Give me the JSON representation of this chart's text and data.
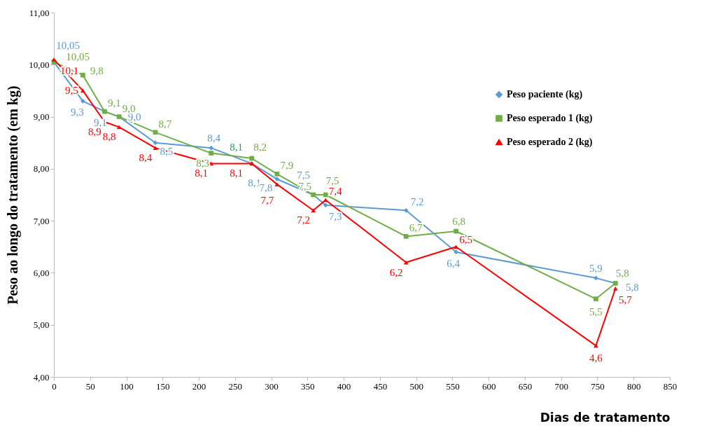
{
  "chart_data": {
    "type": "line",
    "xlabel": "Dias de  tratamento",
    "ylabel": "Peso ao longo do tratamento (em kg)",
    "xlim": [
      0,
      850
    ],
    "xticks": [
      0,
      50,
      100,
      150,
      200,
      250,
      300,
      350,
      400,
      450,
      500,
      550,
      600,
      650,
      700,
      750,
      800,
      850
    ],
    "ylim": [
      4,
      11
    ],
    "yticks": [
      {
        "value": 4,
        "label": "4,00"
      },
      {
        "value": 5,
        "label": "5,00"
      },
      {
        "value": 6,
        "label": "6,00"
      },
      {
        "value": 7,
        "label": "7,00"
      },
      {
        "value": 8,
        "label": "8,00"
      },
      {
        "value": 9,
        "label": "9,00"
      },
      {
        "value": 10,
        "label": "10,00"
      },
      {
        "value": 11,
        "label": "11,00"
      }
    ],
    "grid": false,
    "legend": "top right",
    "series": [
      {
        "name": "Peso paciente (kg)",
        "color": "#5b9bd5",
        "marker": "diamond",
        "x": [
          0,
          40,
          70,
          90,
          140,
          217,
          273,
          308,
          358,
          375,
          486,
          555,
          748,
          775
        ],
        "values": [
          10.05,
          9.3,
          9.1,
          9.0,
          8.5,
          8.4,
          8.1,
          7.8,
          7.5,
          7.3,
          7.2,
          6.4,
          5.9,
          5.8
        ],
        "value_labels": [
          "10,05",
          "9,3",
          "9,1",
          "9,0",
          "8,5",
          "8,4",
          "8,1",
          "7,8",
          "7,5",
          "7,3",
          "7,2",
          "6,4",
          "5,9",
          "5,8"
        ]
      },
      {
        "name": "Peso esperado 1 (kg)",
        "color": "#70ad47",
        "marker": "square",
        "x": [
          0,
          40,
          70,
          90,
          140,
          217,
          273,
          308,
          358,
          375,
          486,
          555,
          748,
          775
        ],
        "values": [
          10.05,
          9.8,
          9.1,
          9.0,
          8.7,
          8.3,
          8.2,
          7.9,
          7.5,
          7.5,
          6.7,
          6.8,
          5.5,
          5.8
        ],
        "value_labels": [
          "10,05",
          "9,8",
          "9,1",
          "9,0",
          "8,7",
          "8,3",
          "8,2",
          "7,9",
          "7,5",
          "7,5",
          "6,7",
          "6,8",
          "5,5",
          "5,8"
        ]
      },
      {
        "name": "Peso esperado 2 (kg)",
        "color": "#ff0000",
        "marker": "triangle",
        "x": [
          0,
          40,
          70,
          90,
          140,
          217,
          273,
          308,
          358,
          375,
          486,
          555,
          748,
          775
        ],
        "values": [
          10.1,
          9.5,
          8.9,
          8.8,
          8.4,
          8.1,
          8.1,
          7.7,
          7.2,
          7.4,
          6.2,
          6.5,
          4.6,
          5.7
        ],
        "value_labels": [
          "10,1",
          "9,5",
          "8,9",
          "8,8",
          "8,4",
          "8,1",
          "8,1",
          "7,7",
          "7,2",
          "7,4",
          "6,2",
          "6,5",
          "4,6",
          "5,7"
        ]
      }
    ],
    "annotations": [
      {
        "text": "8,1",
        "x": 273,
        "y": 8.2
      }
    ]
  }
}
